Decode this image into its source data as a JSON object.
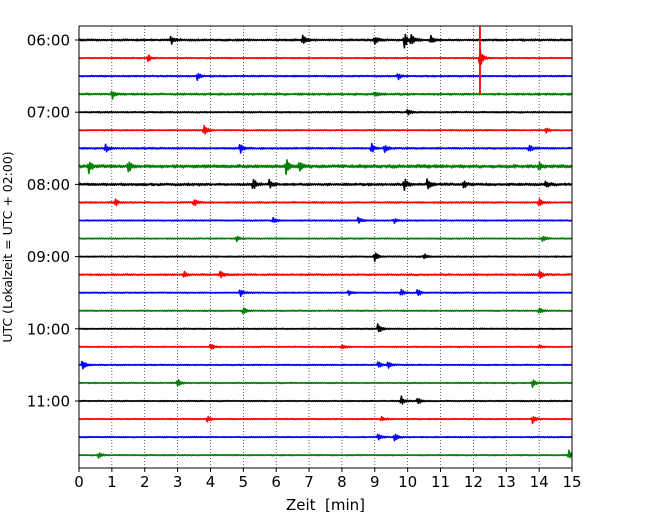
{
  "chart_data": {
    "type": "line",
    "title": "",
    "xlabel": "Zeit  [min]",
    "ylabel": "UTC (Lokalzeit = UTC + 02:00)",
    "xlim": [
      0,
      15
    ],
    "x_ticks": [
      "0",
      "1",
      "2",
      "3",
      "4",
      "5",
      "6",
      "7",
      "8",
      "9",
      "10",
      "11",
      "12",
      "13",
      "14",
      "15"
    ],
    "y_ticks": [
      "06:00",
      "07:00",
      "08:00",
      "09:00",
      "10:00",
      "11:00"
    ],
    "grid": "vertical dotted",
    "trace_minutes_per_line": 15,
    "trace_colors": [
      "#000000",
      "#ff0000",
      "#0000ff",
      "#008000"
    ],
    "traces": [
      {
        "start": "06:00",
        "color": "#000000",
        "noise": 0.7,
        "events": [
          [
            2.8,
            5
          ],
          [
            6.8,
            7
          ],
          [
            9.0,
            4
          ],
          [
            9.9,
            8
          ],
          [
            10.1,
            7
          ],
          [
            10.7,
            5
          ]
        ]
      },
      {
        "start": "06:15",
        "color": "#ff0000",
        "noise": 0.4,
        "events": [
          [
            2.1,
            4
          ],
          [
            12.2,
            10
          ]
        ]
      },
      {
        "start": "06:30",
        "color": "#0000ff",
        "noise": 0.5,
        "events": [
          [
            3.6,
            4
          ],
          [
            9.7,
            4
          ]
        ]
      },
      {
        "start": "06:45",
        "color": "#008000",
        "noise": 0.7,
        "events": [
          [
            1.0,
            5
          ],
          [
            9.0,
            3
          ]
        ]
      },
      {
        "start": "07:00",
        "color": "#000000",
        "noise": 0.5,
        "events": [
          [
            10.0,
            4
          ]
        ]
      },
      {
        "start": "07:15",
        "color": "#ff0000",
        "noise": 0.4,
        "events": [
          [
            3.8,
            6
          ],
          [
            14.2,
            3
          ]
        ]
      },
      {
        "start": "07:30",
        "color": "#0000ff",
        "noise": 0.6,
        "events": [
          [
            0.8,
            5
          ],
          [
            4.9,
            6
          ],
          [
            8.9,
            5
          ],
          [
            9.3,
            4
          ],
          [
            13.7,
            4
          ]
        ]
      },
      {
        "start": "07:45",
        "color": "#008000",
        "noise": 1.2,
        "events": [
          [
            0.3,
            6
          ],
          [
            1.5,
            6
          ],
          [
            6.3,
            7
          ],
          [
            6.7,
            5
          ],
          [
            14.0,
            4
          ]
        ]
      },
      {
        "start": "08:00",
        "color": "#000000",
        "noise": 0.9,
        "events": [
          [
            5.3,
            6
          ],
          [
            5.8,
            5
          ],
          [
            9.9,
            6
          ],
          [
            10.6,
            6
          ],
          [
            11.7,
            4
          ],
          [
            14.2,
            4
          ]
        ]
      },
      {
        "start": "08:15",
        "color": "#ff0000",
        "noise": 0.5,
        "events": [
          [
            1.1,
            4
          ],
          [
            3.5,
            4
          ],
          [
            14.0,
            5
          ]
        ]
      },
      {
        "start": "08:30",
        "color": "#0000ff",
        "noise": 0.4,
        "events": [
          [
            5.9,
            4
          ],
          [
            8.5,
            4
          ],
          [
            9.6,
            3
          ]
        ]
      },
      {
        "start": "08:45",
        "color": "#008000",
        "noise": 0.4,
        "events": [
          [
            4.8,
            3
          ],
          [
            14.1,
            4
          ]
        ]
      },
      {
        "start": "09:00",
        "color": "#000000",
        "noise": 0.4,
        "events": [
          [
            9.0,
            6
          ],
          [
            10.5,
            3
          ]
        ]
      },
      {
        "start": "09:15",
        "color": "#ff0000",
        "noise": 0.6,
        "events": [
          [
            3.2,
            4
          ],
          [
            4.3,
            5
          ],
          [
            14.0,
            5
          ]
        ]
      },
      {
        "start": "09:30",
        "color": "#0000ff",
        "noise": 0.4,
        "events": [
          [
            4.9,
            5
          ],
          [
            8.2,
            3
          ],
          [
            9.8,
            4
          ],
          [
            10.3,
            4
          ]
        ]
      },
      {
        "start": "09:45",
        "color": "#008000",
        "noise": 0.4,
        "events": [
          [
            5.0,
            5
          ],
          [
            14.0,
            4
          ]
        ]
      },
      {
        "start": "10:00",
        "color": "#000000",
        "noise": 0.4,
        "events": [
          [
            9.1,
            6
          ]
        ]
      },
      {
        "start": "10:15",
        "color": "#ff0000",
        "noise": 0.4,
        "events": [
          [
            4.0,
            4
          ],
          [
            8.0,
            3
          ],
          [
            14.0,
            2
          ]
        ]
      },
      {
        "start": "10:30",
        "color": "#0000ff",
        "noise": 0.4,
        "events": [
          [
            0.1,
            5
          ],
          [
            9.1,
            4
          ],
          [
            9.4,
            4
          ]
        ]
      },
      {
        "start": "10:45",
        "color": "#008000",
        "noise": 0.4,
        "events": [
          [
            3.0,
            4
          ],
          [
            13.8,
            4
          ]
        ]
      },
      {
        "start": "11:00",
        "color": "#000000",
        "noise": 0.4,
        "events": [
          [
            9.8,
            6
          ],
          [
            10.3,
            4
          ]
        ]
      },
      {
        "start": "11:15",
        "color": "#ff0000",
        "noise": 0.4,
        "events": [
          [
            3.9,
            3
          ],
          [
            9.2,
            3
          ],
          [
            13.8,
            5
          ]
        ]
      },
      {
        "start": "11:30",
        "color": "#0000ff",
        "noise": 0.4,
        "events": [
          [
            9.1,
            4
          ],
          [
            9.6,
            4
          ]
        ]
      },
      {
        "start": "11:45",
        "color": "#008000",
        "noise": 0.4,
        "events": [
          [
            0.6,
            3
          ],
          [
            14.9,
            5
          ]
        ]
      }
    ]
  }
}
